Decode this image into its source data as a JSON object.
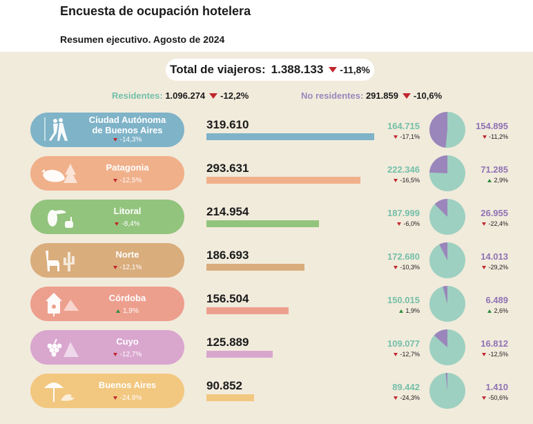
{
  "header": {
    "title": "Encuesta de ocupación hotelera",
    "subtitle": "Resumen ejecutivo. Agosto de 2024"
  },
  "summary": {
    "total_label": "Total de viajeros:",
    "total_value": "1.388.133",
    "total_change": "-11,8%",
    "residents_label": "Residentes:",
    "residents_value": "1.096.274",
    "residents_change": "-12,2%",
    "nonresidents_label": "No residentes:",
    "nonresidents_value": "291.859",
    "nonresidents_change": "-10,6%"
  },
  "colors": {
    "residents": "#9dd0c0",
    "nonresidents": "#9b86bc",
    "decrease": "#c0272d",
    "increase": "#2f8a3c"
  },
  "chart_data": {
    "type": "bar",
    "categories": [
      "Ciudad Autónoma de Buenos Aires",
      "Patagonia",
      "Litoral",
      "Norte",
      "Córdoba",
      "Cuyo",
      "Buenos Aires"
    ],
    "regions": [
      {
        "name_lines": [
          "Ciudad Autónoma",
          "de Buenos Aires"
        ],
        "icon": "tango-dancers-icon",
        "color": "#7fb3c8",
        "bar_color": "#7fb3c8",
        "change": "-14,3%",
        "change_dir": "down",
        "total": 319610,
        "total_label": "319.610",
        "residents": 164715,
        "residents_label": "164.715",
        "residents_change": "-17,1%",
        "residents_dir": "down",
        "nonresidents": 154895,
        "nonresidents_label": "154.895",
        "nonresidents_change": "-11,2%",
        "nonresidents_dir": "down"
      },
      {
        "name_lines": [
          "Patagonia"
        ],
        "icon": "whale-icon",
        "color": "#f0b08a",
        "bar_color": "#f0b08a",
        "change": "-12,5%",
        "change_dir": "down",
        "total": 293631,
        "total_label": "293.631",
        "residents": 222346,
        "residents_label": "222.346",
        "residents_change": "-16,5%",
        "residents_dir": "down",
        "nonresidents": 71285,
        "nonresidents_label": "71.285",
        "nonresidents_change": "2,9%",
        "nonresidents_dir": "up"
      },
      {
        "name_lines": [
          "Litoral"
        ],
        "icon": "toucan-icon",
        "color": "#93c47d",
        "bar_color": "#93c47d",
        "change": "-8,4%",
        "change_dir": "down",
        "total": 214954,
        "total_label": "214.954",
        "residents": 187999,
        "residents_label": "187.999",
        "residents_change": "-6,0%",
        "residents_dir": "down",
        "nonresidents": 26955,
        "nonresidents_label": "26.955",
        "nonresidents_change": "-22,4%",
        "nonresidents_dir": "down"
      },
      {
        "name_lines": [
          "Norte"
        ],
        "icon": "llama-cactus-icon",
        "color": "#d9ad7c",
        "bar_color": "#d9ad7c",
        "change": "-12,1%",
        "change_dir": "down",
        "total": 186693,
        "total_label": "186.693",
        "residents": 172680,
        "residents_label": "172.680",
        "residents_change": "-10,3%",
        "residents_dir": "down",
        "nonresidents": 14013,
        "nonresidents_label": "14.013",
        "nonresidents_change": "-29,2%",
        "nonresidents_dir": "down"
      },
      {
        "name_lines": [
          "Córdoba"
        ],
        "icon": "birdhouse-icon",
        "color": "#ed9f8e",
        "bar_color": "#ed9f8e",
        "change": "1,9%",
        "change_dir": "up",
        "total": 156504,
        "total_label": "156.504",
        "residents": 150015,
        "residents_label": "150.015",
        "residents_change": "1,9%",
        "residents_dir": "up",
        "nonresidents": 6489,
        "nonresidents_label": "6.489",
        "nonresidents_change": "2,6%",
        "nonresidents_dir": "up"
      },
      {
        "name_lines": [
          "Cuyo"
        ],
        "icon": "grapes-mountain-icon",
        "color": "#d9a6ce",
        "bar_color": "#d9a6ce",
        "change": "-12,7%",
        "change_dir": "down",
        "total": 125889,
        "total_label": "125.889",
        "residents": 109077,
        "residents_label": "109.077",
        "residents_change": "-12,7%",
        "residents_dir": "down",
        "nonresidents": 16812,
        "nonresidents_label": "16.812",
        "nonresidents_change": "-12,5%",
        "nonresidents_dir": "down"
      },
      {
        "name_lines": [
          "Buenos Aires"
        ],
        "icon": "beach-umbrella-icon",
        "color": "#f2c77f",
        "bar_color": "#f2c77f",
        "change": "-24,9%",
        "change_dir": "down",
        "total": 90852,
        "total_label": "90.852",
        "residents": 89442,
        "residents_label": "89.442",
        "residents_change": "-24,3%",
        "residents_dir": "down",
        "nonresidents": 1410,
        "nonresidents_label": "1.410",
        "nonresidents_change": "-50,6%",
        "nonresidents_dir": "down"
      }
    ]
  }
}
